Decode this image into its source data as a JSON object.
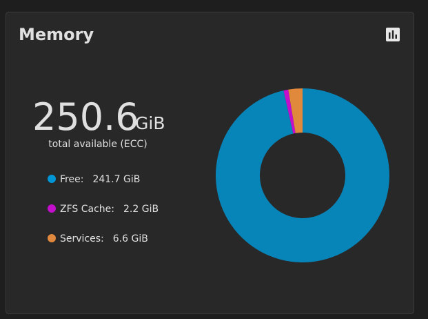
{
  "chart_data": {
    "type": "pie",
    "donut": true,
    "title": "Memory",
    "total": 250.6,
    "total_unit": "GiB",
    "total_caption": "total available (ECC)",
    "categories": [
      "Free:",
      "ZFS Cache:",
      "Services:"
    ],
    "values": [
      241.7,
      2.2,
      6.6
    ],
    "value_labels": [
      "241.7 GiB",
      "2.2 GiB",
      "6.6 GiB"
    ],
    "colors": [
      "#0785b9",
      "#c30fcc",
      "#e0883b"
    ],
    "legend_colors": [
      "#0095d5",
      "#c30fcc",
      "#e0883b"
    ]
  }
}
